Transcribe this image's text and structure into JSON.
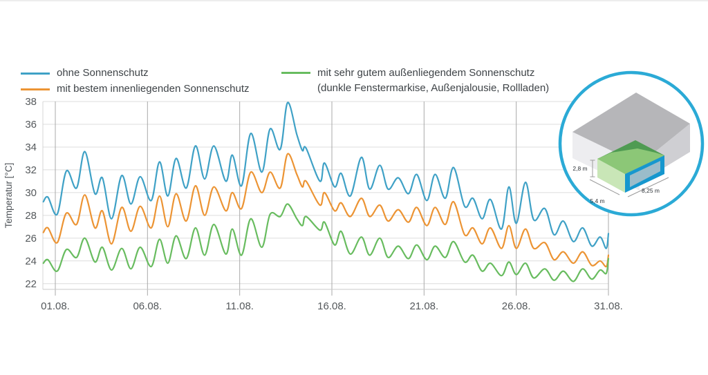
{
  "page": {
    "background": "#ffffff"
  },
  "legend": {
    "items": [
      {
        "label": "ohne Sonnenschutz",
        "color": "#3FA1C6"
      },
      {
        "label": "mit bestem innenliegenden Sonnenschutz",
        "color": "#EC9434"
      },
      {
        "label": "mit sehr gutem außenliegendem Sonnenschutz",
        "label2": "(dunkle Fenstermarkise, Außenjalousie, Rollladen)",
        "color": "#68BC5F"
      }
    ]
  },
  "chart_data": {
    "type": "line",
    "title": "",
    "xlabel": "",
    "ylabel": "Temperatur [°C]",
    "grid": true,
    "legend_position": "top",
    "y_ticks": [
      22,
      24,
      26,
      28,
      30,
      32,
      34,
      36,
      38
    ],
    "y_range": [
      21.5,
      38
    ],
    "x_tick_days": [
      1,
      6,
      11,
      16,
      21,
      26,
      31
    ],
    "x_tick_labels": [
      "01.08.",
      "06.08.",
      "11.08.",
      "16.08.",
      "21.08.",
      "26.08.",
      "31.08."
    ],
    "x_range": [
      0.35,
      31
    ],
    "series": [
      {
        "name": "ohne Sonnenschutz",
        "color": "#3FA1C6",
        "points": [
          [
            0.35,
            29.2
          ],
          [
            0.6,
            29.6
          ],
          [
            1.1,
            28.1
          ],
          [
            1.6,
            31.9
          ],
          [
            2.15,
            30.4
          ],
          [
            2.6,
            33.6
          ],
          [
            3.15,
            29.9
          ],
          [
            3.55,
            31.3
          ],
          [
            4.05,
            27.7
          ],
          [
            4.6,
            31.5
          ],
          [
            5.1,
            29.0
          ],
          [
            5.6,
            31.4
          ],
          [
            6.2,
            29.3
          ],
          [
            6.65,
            32.7
          ],
          [
            7.1,
            29.7
          ],
          [
            7.55,
            33.0
          ],
          [
            8.1,
            30.4
          ],
          [
            8.6,
            34.1
          ],
          [
            9.1,
            31.2
          ],
          [
            9.6,
            34.1
          ],
          [
            10.25,
            31.0
          ],
          [
            10.6,
            33.3
          ],
          [
            11.1,
            30.6
          ],
          [
            11.6,
            35.2
          ],
          [
            12.2,
            31.8
          ],
          [
            12.65,
            35.6
          ],
          [
            13.2,
            33.8
          ],
          [
            13.6,
            37.9
          ],
          [
            14.1,
            35.1
          ],
          [
            14.4,
            33.7
          ],
          [
            14.6,
            33.9
          ],
          [
            15.35,
            31.0
          ],
          [
            15.6,
            32.6
          ],
          [
            16.15,
            30.5
          ],
          [
            16.5,
            31.7
          ],
          [
            17.0,
            29.7
          ],
          [
            17.6,
            33.1
          ],
          [
            18.05,
            30.3
          ],
          [
            18.6,
            32.4
          ],
          [
            19.05,
            30.3
          ],
          [
            19.6,
            31.3
          ],
          [
            20.15,
            29.9
          ],
          [
            20.6,
            31.6
          ],
          [
            21.15,
            29.3
          ],
          [
            21.6,
            31.6
          ],
          [
            22.15,
            29.5
          ],
          [
            22.6,
            32.2
          ],
          [
            23.2,
            28.8
          ],
          [
            23.65,
            29.5
          ],
          [
            24.15,
            27.7
          ],
          [
            24.6,
            29.4
          ],
          [
            25.2,
            26.8
          ],
          [
            25.6,
            30.5
          ],
          [
            26.0,
            27.3
          ],
          [
            26.5,
            30.9
          ],
          [
            26.95,
            27.6
          ],
          [
            27.55,
            28.6
          ],
          [
            28.05,
            26.3
          ],
          [
            28.55,
            27.5
          ],
          [
            29.1,
            25.7
          ],
          [
            29.6,
            26.9
          ],
          [
            30.1,
            25.3
          ],
          [
            30.55,
            26.1
          ],
          [
            30.88,
            25.1
          ],
          [
            31.0,
            26.4
          ]
        ]
      },
      {
        "name": "mit bestem innenliegenden Sonnenschutz",
        "color": "#EC9434",
        "points": [
          [
            0.35,
            26.5
          ],
          [
            0.6,
            26.9
          ],
          [
            1.1,
            25.6
          ],
          [
            1.6,
            28.2
          ],
          [
            2.15,
            27.2
          ],
          [
            2.6,
            29.8
          ],
          [
            3.15,
            26.9
          ],
          [
            3.55,
            28.4
          ],
          [
            4.05,
            25.5
          ],
          [
            4.6,
            28.7
          ],
          [
            5.1,
            26.6
          ],
          [
            5.6,
            28.8
          ],
          [
            6.2,
            26.9
          ],
          [
            6.65,
            29.7
          ],
          [
            7.1,
            27.0
          ],
          [
            7.55,
            29.9
          ],
          [
            8.1,
            27.5
          ],
          [
            8.6,
            30.6
          ],
          [
            9.1,
            28.0
          ],
          [
            9.6,
            30.5
          ],
          [
            10.25,
            28.4
          ],
          [
            10.6,
            30.0
          ],
          [
            11.1,
            28.6
          ],
          [
            11.6,
            31.8
          ],
          [
            12.2,
            30.0
          ],
          [
            12.65,
            31.8
          ],
          [
            13.2,
            30.4
          ],
          [
            13.6,
            33.4
          ],
          [
            14.1,
            31.6
          ],
          [
            14.4,
            30.5
          ],
          [
            14.6,
            31.0
          ],
          [
            15.35,
            28.9
          ],
          [
            15.6,
            30.0
          ],
          [
            16.15,
            28.4
          ],
          [
            16.5,
            29.1
          ],
          [
            17.0,
            27.9
          ],
          [
            17.6,
            29.5
          ],
          [
            18.05,
            27.9
          ],
          [
            18.6,
            28.9
          ],
          [
            19.05,
            27.5
          ],
          [
            19.6,
            28.5
          ],
          [
            20.15,
            27.4
          ],
          [
            20.6,
            28.7
          ],
          [
            21.15,
            27.1
          ],
          [
            21.6,
            28.7
          ],
          [
            22.15,
            27.2
          ],
          [
            22.6,
            29.2
          ],
          [
            23.2,
            26.3
          ],
          [
            23.65,
            26.9
          ],
          [
            24.15,
            25.5
          ],
          [
            24.6,
            26.9
          ],
          [
            25.2,
            25.1
          ],
          [
            25.6,
            27.1
          ],
          [
            26.0,
            25.1
          ],
          [
            26.5,
            26.8
          ],
          [
            26.95,
            25.1
          ],
          [
            27.55,
            25.6
          ],
          [
            28.05,
            24.1
          ],
          [
            28.55,
            24.8
          ],
          [
            29.1,
            23.8
          ],
          [
            29.6,
            24.8
          ],
          [
            30.1,
            23.6
          ],
          [
            30.55,
            24.0
          ],
          [
            30.88,
            23.5
          ],
          [
            31.0,
            24.5
          ]
        ]
      },
      {
        "name": "mit sehr gutem außenliegendem Sonnenschutz (dunkle Fenstermarkise, Außenjalousie, Rollladen)",
        "color": "#68BC5F",
        "points": [
          [
            0.35,
            23.8
          ],
          [
            0.6,
            24.1
          ],
          [
            1.1,
            23.1
          ],
          [
            1.6,
            25.0
          ],
          [
            2.15,
            24.3
          ],
          [
            2.6,
            26.0
          ],
          [
            3.15,
            23.9
          ],
          [
            3.55,
            25.2
          ],
          [
            4.05,
            23.2
          ],
          [
            4.6,
            25.1
          ],
          [
            5.1,
            23.3
          ],
          [
            5.6,
            25.2
          ],
          [
            6.2,
            23.5
          ],
          [
            6.65,
            25.9
          ],
          [
            7.1,
            23.8
          ],
          [
            7.55,
            26.2
          ],
          [
            8.1,
            24.2
          ],
          [
            8.6,
            26.9
          ],
          [
            9.1,
            24.5
          ],
          [
            9.6,
            27.2
          ],
          [
            10.25,
            24.6
          ],
          [
            10.6,
            26.8
          ],
          [
            11.1,
            24.5
          ],
          [
            11.6,
            27.7
          ],
          [
            12.2,
            25.2
          ],
          [
            12.65,
            28.1
          ],
          [
            13.2,
            27.9
          ],
          [
            13.6,
            29.0
          ],
          [
            14.1,
            27.7
          ],
          [
            14.4,
            27.1
          ],
          [
            14.6,
            27.9
          ],
          [
            15.35,
            26.7
          ],
          [
            15.6,
            27.4
          ],
          [
            16.15,
            25.4
          ],
          [
            16.5,
            26.6
          ],
          [
            17.0,
            24.6
          ],
          [
            17.6,
            26.1
          ],
          [
            18.05,
            24.5
          ],
          [
            18.6,
            26.0
          ],
          [
            19.05,
            24.3
          ],
          [
            19.6,
            25.3
          ],
          [
            20.15,
            24.2
          ],
          [
            20.6,
            25.4
          ],
          [
            21.15,
            24.1
          ],
          [
            21.6,
            25.3
          ],
          [
            22.15,
            24.3
          ],
          [
            22.6,
            25.7
          ],
          [
            23.2,
            23.9
          ],
          [
            23.65,
            24.5
          ],
          [
            24.15,
            23.1
          ],
          [
            24.6,
            23.8
          ],
          [
            25.2,
            22.7
          ],
          [
            25.6,
            23.9
          ],
          [
            26.0,
            22.8
          ],
          [
            26.5,
            23.8
          ],
          [
            26.95,
            22.5
          ],
          [
            27.55,
            23.3
          ],
          [
            28.05,
            22.3
          ],
          [
            28.55,
            23.1
          ],
          [
            29.1,
            22.2
          ],
          [
            29.6,
            23.3
          ],
          [
            30.1,
            22.4
          ],
          [
            30.55,
            23.2
          ],
          [
            30.88,
            22.9
          ],
          [
            31.0,
            24.2
          ]
        ]
      }
    ]
  },
  "inset": {
    "dim_height": "2,8 m",
    "dim_width": "5,4 m",
    "dim_length": "8,25 m",
    "ring_color": "#2BAAD6"
  }
}
